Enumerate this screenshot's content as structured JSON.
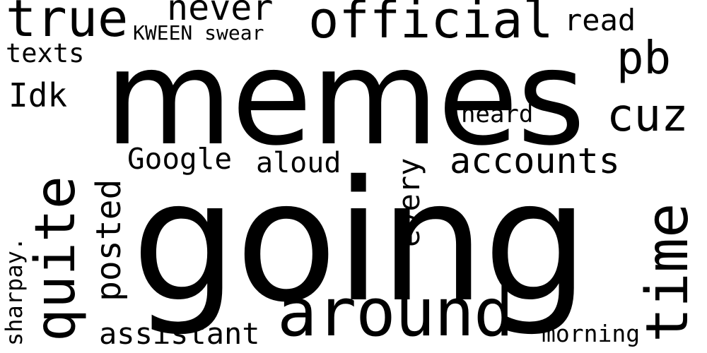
{
  "word_cloud": {
    "background_color": "#ffffff",
    "text_color": "#000000",
    "words": {
      "memes": "memes",
      "going": "going",
      "official": "official",
      "true": "true",
      "never": "never",
      "read": "read",
      "kween_swear": "KWEEN swear",
      "texts": "texts",
      "pb": "pb",
      "idk": "Idk",
      "cuz": "cuz",
      "heard": "heard",
      "google": "Google",
      "aloud": "aloud",
      "accounts": "accounts",
      "quite": "quite",
      "posted": "posted",
      "every": "every",
      "time": "time",
      "sharpay": "sharpay.",
      "around": "around",
      "assistant": "assistant",
      "morning": "morning"
    }
  }
}
